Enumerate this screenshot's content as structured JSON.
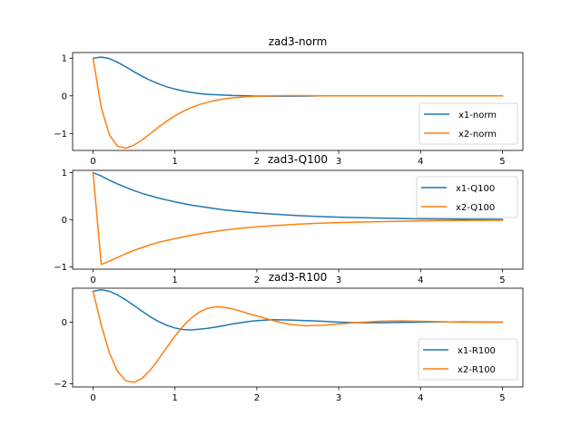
{
  "chart_data": [
    {
      "type": "line",
      "title": "zad3-norm",
      "xlabel": "",
      "ylabel": "",
      "xlim": [
        -0.25,
        5.25
      ],
      "ylim": [
        -1.45,
        1.15
      ],
      "xticks": [
        0,
        1,
        2,
        3,
        4,
        5
      ],
      "yticks": [
        -1,
        0,
        1
      ],
      "grid": false,
      "legend": "bottom-right",
      "series": [
        {
          "name": "x1-norm",
          "color": "#1f77b4",
          "x": [
            0,
            0.1,
            0.2,
            0.3,
            0.4,
            0.5,
            0.6,
            0.7,
            0.8,
            0.9,
            1.0,
            1.1,
            1.2,
            1.3,
            1.4,
            1.5,
            1.6,
            1.7,
            1.8,
            1.9,
            2.0,
            2.2,
            2.4,
            2.6,
            2.8,
            3.0,
            3.5,
            4.0,
            4.5,
            5.0
          ],
          "y": [
            1.0,
            1.03,
            0.99,
            0.89,
            0.77,
            0.64,
            0.52,
            0.41,
            0.32,
            0.24,
            0.18,
            0.13,
            0.09,
            0.06,
            0.04,
            0.03,
            0.02,
            0.01,
            0.005,
            0.0,
            -0.005,
            -0.01,
            -0.01,
            -0.005,
            0,
            0,
            0,
            0,
            0,
            0
          ]
        },
        {
          "name": "x2-norm",
          "color": "#ff7f0e",
          "x": [
            0,
            0.1,
            0.2,
            0.3,
            0.4,
            0.5,
            0.6,
            0.7,
            0.8,
            0.9,
            1.0,
            1.1,
            1.2,
            1.3,
            1.4,
            1.5,
            1.6,
            1.7,
            1.8,
            1.9,
            2.0,
            2.2,
            2.4,
            2.6,
            2.8,
            3.0,
            3.5,
            4.0,
            4.5,
            5.0
          ],
          "y": [
            1.0,
            -0.32,
            -1.04,
            -1.34,
            -1.39,
            -1.31,
            -1.17,
            -1.0,
            -0.83,
            -0.67,
            -0.53,
            -0.41,
            -0.31,
            -0.23,
            -0.17,
            -0.12,
            -0.08,
            -0.055,
            -0.035,
            -0.02,
            -0.01,
            0.0,
            0.005,
            0.005,
            0,
            0,
            0,
            0,
            0,
            0
          ]
        }
      ]
    },
    {
      "type": "line",
      "title": "zad3-Q100",
      "xlabel": "",
      "ylabel": "",
      "xlim": [
        -0.25,
        5.25
      ],
      "ylim": [
        -1.05,
        1.05
      ],
      "xticks": [
        0,
        1,
        2,
        3,
        4,
        5
      ],
      "yticks": [
        -1,
        0,
        1
      ],
      "grid": false,
      "legend": "top-right",
      "series": [
        {
          "name": "x1-Q100",
          "color": "#1f77b4",
          "x": [
            0,
            0.1,
            0.2,
            0.3,
            0.4,
            0.5,
            0.6,
            0.7,
            0.8,
            0.9,
            1.0,
            1.2,
            1.4,
            1.6,
            1.8,
            2.0,
            2.25,
            2.5,
            2.75,
            3.0,
            3.5,
            4.0,
            4.5,
            5.0
          ],
          "y": [
            1.0,
            0.93,
            0.84,
            0.76,
            0.69,
            0.62,
            0.56,
            0.51,
            0.46,
            0.42,
            0.38,
            0.31,
            0.26,
            0.21,
            0.175,
            0.145,
            0.115,
            0.09,
            0.07,
            0.055,
            0.035,
            0.02,
            0.015,
            0.01
          ]
        },
        {
          "name": "x2-Q100",
          "color": "#ff7f0e",
          "x": [
            0,
            0.1,
            0.2,
            0.3,
            0.4,
            0.5,
            0.6,
            0.7,
            0.8,
            0.9,
            1.0,
            1.2,
            1.4,
            1.6,
            1.8,
            2.0,
            2.25,
            2.5,
            2.75,
            3.0,
            3.5,
            4.0,
            4.5,
            5.0
          ],
          "y": [
            1.0,
            -0.95,
            -0.88,
            -0.8,
            -0.72,
            -0.65,
            -0.59,
            -0.53,
            -0.48,
            -0.44,
            -0.4,
            -0.33,
            -0.27,
            -0.22,
            -0.18,
            -0.15,
            -0.12,
            -0.095,
            -0.075,
            -0.06,
            -0.04,
            -0.025,
            -0.015,
            -0.01
          ]
        }
      ]
    },
    {
      "type": "line",
      "title": "zad3-R100",
      "xlabel": "",
      "ylabel": "",
      "xlim": [
        -0.25,
        5.25
      ],
      "ylim": [
        -2.1,
        1.1
      ],
      "xticks": [
        0,
        1,
        2,
        3,
        4,
        5
      ],
      "yticks": [
        -2,
        0
      ],
      "grid": false,
      "legend": "bottom-right",
      "series": [
        {
          "name": "x1-R100",
          "color": "#1f77b4",
          "x": [
            0,
            0.1,
            0.2,
            0.3,
            0.4,
            0.5,
            0.6,
            0.7,
            0.8,
            0.9,
            1.0,
            1.1,
            1.2,
            1.3,
            1.4,
            1.5,
            1.6,
            1.7,
            1.8,
            1.9,
            2.0,
            2.2,
            2.4,
            2.6,
            2.8,
            3.0,
            3.25,
            3.5,
            3.75,
            4.0,
            4.5,
            5.0
          ],
          "y": [
            1.0,
            1.05,
            1.0,
            0.88,
            0.72,
            0.54,
            0.35,
            0.17,
            0.02,
            -0.1,
            -0.19,
            -0.24,
            -0.25,
            -0.23,
            -0.2,
            -0.16,
            -0.11,
            -0.06,
            -0.02,
            0.02,
            0.05,
            0.08,
            0.07,
            0.05,
            0.03,
            0.0,
            -0.02,
            -0.02,
            -0.01,
            0.0,
            0.01,
            0.0
          ]
        },
        {
          "name": "x2-R100",
          "color": "#ff7f0e",
          "x": [
            0,
            0.1,
            0.2,
            0.3,
            0.4,
            0.5,
            0.6,
            0.7,
            0.8,
            0.9,
            1.0,
            1.1,
            1.2,
            1.3,
            1.4,
            1.5,
            1.6,
            1.7,
            1.8,
            1.9,
            2.0,
            2.2,
            2.4,
            2.6,
            2.8,
            3.0,
            3.25,
            3.5,
            3.75,
            4.0,
            4.5,
            5.0
          ],
          "y": [
            1.0,
            -0.1,
            -1.0,
            -1.6,
            -1.9,
            -1.95,
            -1.82,
            -1.55,
            -1.2,
            -0.82,
            -0.45,
            -0.13,
            0.13,
            0.33,
            0.45,
            0.5,
            0.48,
            0.43,
            0.36,
            0.27,
            0.2,
            0.05,
            -0.07,
            -0.12,
            -0.1,
            -0.06,
            -0.01,
            0.03,
            0.04,
            0.03,
            0.0,
            0.0
          ]
        }
      ]
    }
  ]
}
